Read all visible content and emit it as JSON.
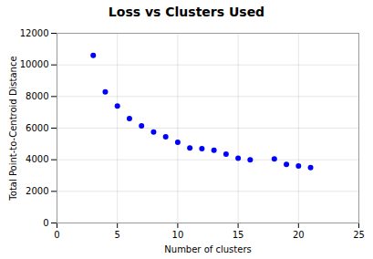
{
  "chart_data": {
    "type": "scatter",
    "title": "Loss vs Clusters Used",
    "xlabel": "Number of clusters",
    "ylabel": "Total Point-to-Centroid Distance",
    "x": [
      3,
      4,
      5,
      6,
      7,
      8,
      9,
      10,
      11,
      12,
      13,
      14,
      15,
      16,
      18,
      19,
      20,
      21
    ],
    "values": [
      10600,
      8300,
      7400,
      6600,
      6150,
      5750,
      5450,
      5100,
      4750,
      4700,
      4600,
      4350,
      4100,
      4000,
      4050,
      3700,
      3600,
      3500
    ],
    "color": "blue",
    "xlim": [
      0,
      25
    ],
    "ylim": [
      0,
      12000
    ],
    "xticks": [
      0,
      5,
      10,
      15,
      20,
      25
    ],
    "yticks": [
      0,
      2000,
      4000,
      6000,
      8000,
      10000,
      12000
    ],
    "grid": true
  }
}
